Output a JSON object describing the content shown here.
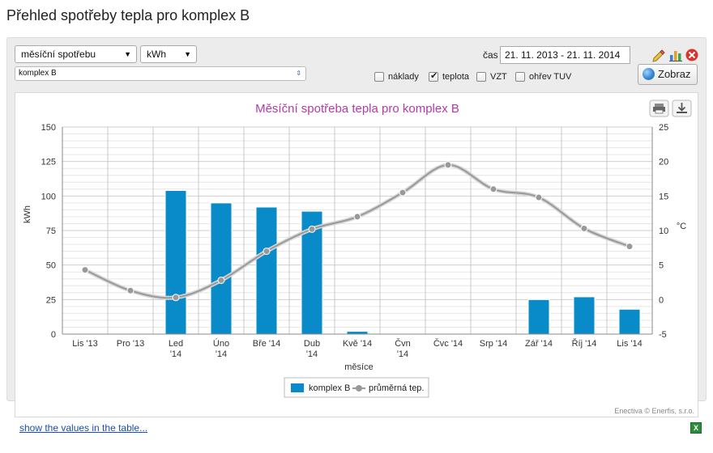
{
  "page": {
    "title": "Přehled spotřeby tepla pro komplex B"
  },
  "controls": {
    "mode_select": "měsíční spotřebu",
    "unit_select": "kWh",
    "object_select": "komplex B",
    "time_label": "čas",
    "date_range": "21. 11. 2013 - 21. 11. 2014",
    "show_button": "Zobraz",
    "checkboxes": [
      {
        "label": "náklady",
        "checked": false
      },
      {
        "label": "teplota",
        "checked": true
      },
      {
        "label": "VZT",
        "checked": false
      },
      {
        "label": "ohřev TUV",
        "checked": false
      }
    ]
  },
  "icons": {
    "pencil": "pencil-icon",
    "bar_chart": "bar-chart-icon",
    "close": "close-icon",
    "print": "print-icon",
    "download": "download-icon",
    "excel": "excel-icon"
  },
  "chart_data": {
    "type": "bar",
    "title": "Měsíční spotřeba tepla pro komplex B",
    "xlabel": "měsíce",
    "ylabel": "kWh",
    "y2label": "°C",
    "categories": [
      [
        "Lis '13"
      ],
      [
        "Pro '13"
      ],
      [
        "Led",
        "'14"
      ],
      [
        "Úno",
        "'14"
      ],
      [
        "Bře '14"
      ],
      [
        "Dub",
        "'14"
      ],
      [
        "Kvě '14"
      ],
      [
        "Čvn",
        "'14"
      ],
      [
        "Čvc '14"
      ],
      [
        "Srp '14"
      ],
      [
        "Zář '14"
      ],
      [
        "Říj '14"
      ],
      [
        "Lis '14"
      ]
    ],
    "ylim": [
      0,
      150
    ],
    "yticks": [
      "0",
      "25",
      "50",
      "75",
      "100",
      "125",
      "150"
    ],
    "y2lim": [
      -5,
      25
    ],
    "y2ticks": [
      "-5",
      "0",
      "5",
      "10",
      "15",
      "20",
      "25"
    ],
    "grid": true,
    "legend_position": "bottom-center",
    "series": [
      {
        "name": "komplex B",
        "type": "bar",
        "axis": "left",
        "color": "#0a8bc9",
        "values": [
          0,
          0,
          104,
          95,
          92,
          89,
          2,
          0,
          0,
          0,
          25,
          27,
          18
        ]
      },
      {
        "name": "průměrná tep.",
        "type": "line",
        "axis": "right",
        "color": "#999999",
        "values": [
          4.3,
          1.3,
          0.3,
          2.8,
          7.0,
          10.2,
          12.0,
          15.5,
          19.5,
          16.0,
          14.8,
          10.3,
          7.7
        ]
      }
    ],
    "credit": "Enectiva © Enerfis, s.r.o."
  },
  "footer": {
    "table_link": "show the values in the table..."
  }
}
